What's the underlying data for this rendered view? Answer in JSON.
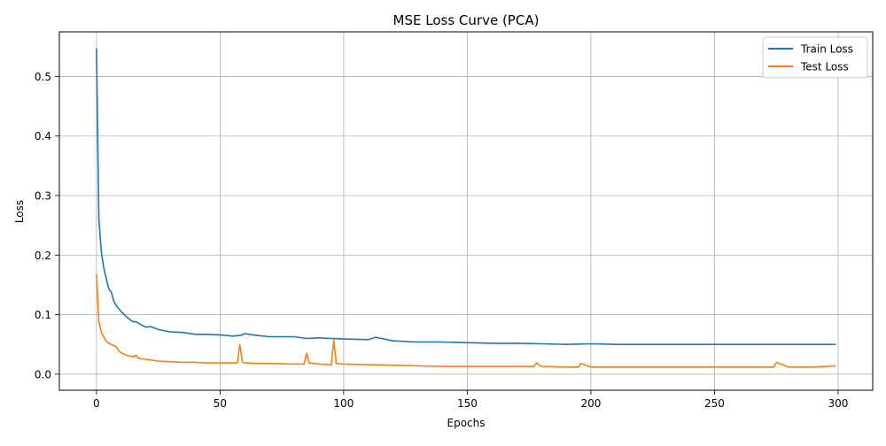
{
  "chart_data": {
    "type": "line",
    "title": "MSE Loss Curve (PCA)",
    "xlabel": "Epochs",
    "ylabel": "Loss",
    "xlim": [
      -15,
      314
    ],
    "ylim": [
      -0.027,
      0.575
    ],
    "xticks": [
      0,
      50,
      100,
      150,
      200,
      250,
      300
    ],
    "yticks": [
      0.0,
      0.1,
      0.2,
      0.3,
      0.4,
      0.5
    ],
    "xtick_labels": [
      "0",
      "50",
      "100",
      "150",
      "200",
      "250",
      "300"
    ],
    "ytick_labels": [
      "0.0",
      "0.1",
      "0.2",
      "0.3",
      "0.4",
      "0.5"
    ],
    "grid": true,
    "legend_position": "top-right",
    "series": [
      {
        "name": "Train Loss",
        "color": "#1f77b4",
        "epochs": [
          0,
          1,
          2,
          3,
          4,
          5,
          6,
          7,
          8,
          10,
          12,
          14,
          15,
          16,
          18,
          20,
          22,
          25,
          30,
          35,
          40,
          45,
          50,
          55,
          58,
          60,
          65,
          70,
          80,
          85,
          90,
          95,
          100,
          110,
          113,
          120,
          130,
          140,
          150,
          160,
          170,
          180,
          190,
          200,
          210,
          220,
          230,
          240,
          250,
          260,
          270,
          280,
          290,
          299
        ],
        "values": [
          0.547,
          0.26,
          0.205,
          0.178,
          0.16,
          0.143,
          0.138,
          0.123,
          0.115,
          0.105,
          0.097,
          0.09,
          0.088,
          0.088,
          0.083,
          0.079,
          0.08,
          0.075,
          0.071,
          0.07,
          0.067,
          0.067,
          0.066,
          0.064,
          0.065,
          0.068,
          0.065,
          0.063,
          0.063,
          0.06,
          0.061,
          0.06,
          0.059,
          0.058,
          0.062,
          0.056,
          0.054,
          0.054,
          0.053,
          0.052,
          0.052,
          0.051,
          0.05,
          0.051,
          0.05,
          0.05,
          0.05,
          0.05,
          0.05,
          0.05,
          0.05,
          0.05,
          0.05,
          0.05
        ]
      },
      {
        "name": "Test Loss",
        "color": "#ff7f0e",
        "epochs": [
          0,
          1,
          2,
          3,
          4,
          5,
          6,
          7,
          8,
          9,
          10,
          12,
          14,
          15,
          16,
          17,
          18,
          20,
          25,
          30,
          35,
          40,
          45,
          50,
          55,
          57,
          58,
          59,
          60,
          65,
          70,
          80,
          84,
          85,
          86,
          90,
          95,
          96,
          97,
          100,
          110,
          120,
          130,
          140,
          150,
          160,
          170,
          177,
          178,
          180,
          190,
          195,
          196,
          200,
          210,
          220,
          230,
          240,
          250,
          260,
          270,
          274,
          275,
          280,
          290,
          299
        ],
        "values": [
          0.168,
          0.088,
          0.07,
          0.062,
          0.055,
          0.052,
          0.05,
          0.048,
          0.046,
          0.039,
          0.036,
          0.032,
          0.03,
          0.029,
          0.032,
          0.027,
          0.026,
          0.025,
          0.022,
          0.021,
          0.02,
          0.02,
          0.019,
          0.019,
          0.019,
          0.019,
          0.05,
          0.02,
          0.019,
          0.018,
          0.018,
          0.017,
          0.017,
          0.035,
          0.019,
          0.017,
          0.016,
          0.057,
          0.018,
          0.017,
          0.016,
          0.015,
          0.014,
          0.013,
          0.013,
          0.013,
          0.013,
          0.013,
          0.019,
          0.013,
          0.012,
          0.012,
          0.018,
          0.012,
          0.012,
          0.012,
          0.012,
          0.012,
          0.012,
          0.012,
          0.012,
          0.012,
          0.02,
          0.012,
          0.012,
          0.014
        ]
      }
    ]
  }
}
